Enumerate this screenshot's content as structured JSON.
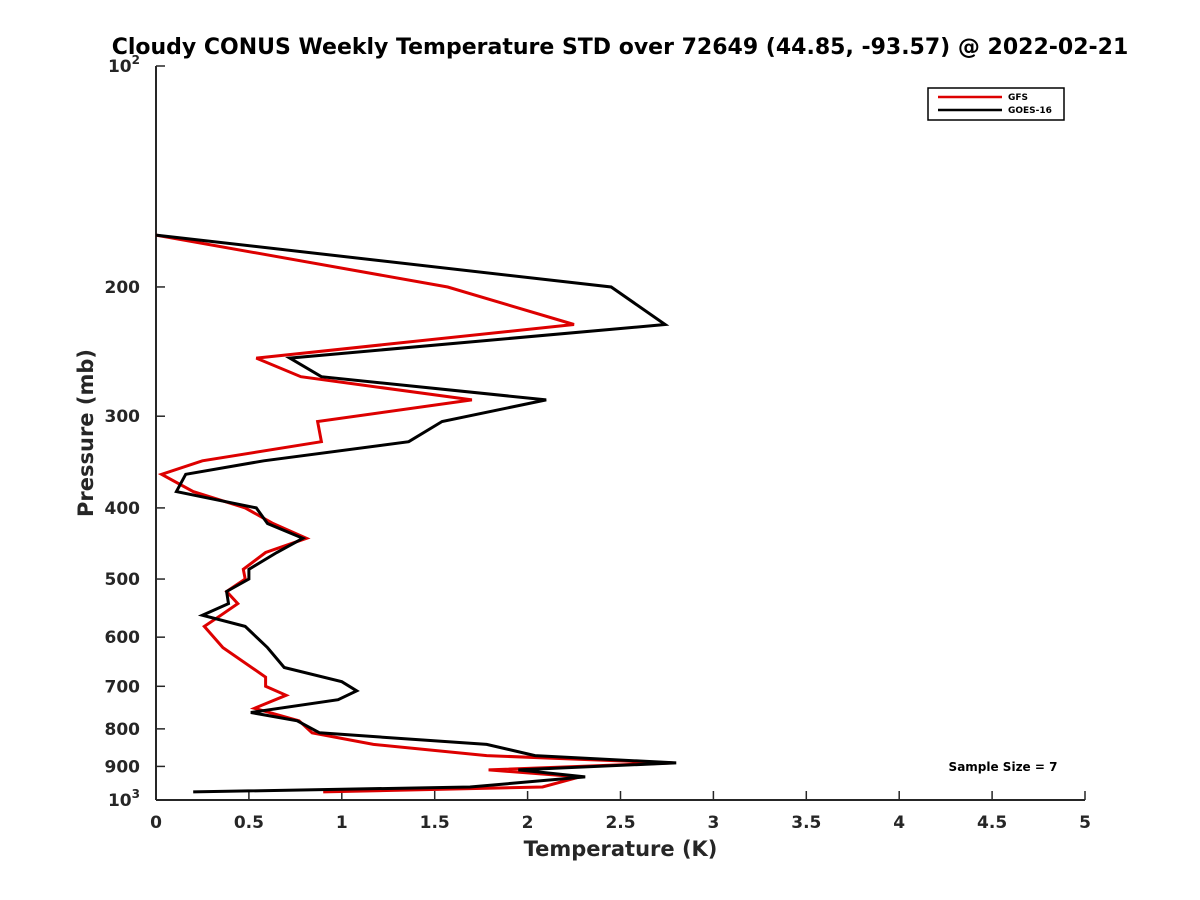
{
  "chart_data": {
    "type": "line",
    "title": "Cloudy CONUS Weekly Temperature STD over 72649 (44.85, -93.57) @ 2022-02-21",
    "xlabel": "Temperature (K)",
    "ylabel": "Pressure (mb)",
    "xlim": [
      0,
      5
    ],
    "ylim": [
      100,
      1000
    ],
    "y_scale": "log",
    "y_reversed": true,
    "x_ticks": [
      "0",
      "0.5",
      "1",
      "1.5",
      "2",
      "2.5",
      "3",
      "3.5",
      "4",
      "4.5",
      "5"
    ],
    "y_ticks": [
      {
        "value": 100,
        "base": "10",
        "exp": "2"
      },
      {
        "value": 200,
        "label": "200"
      },
      {
        "value": 300,
        "label": "300"
      },
      {
        "value": 400,
        "label": "400"
      },
      {
        "value": 500,
        "label": "500"
      },
      {
        "value": 600,
        "label": "600"
      },
      {
        "value": 700,
        "label": "700"
      },
      {
        "value": 800,
        "label": "800"
      },
      {
        "value": 900,
        "label": "900"
      },
      {
        "value": 1000,
        "base": "10",
        "exp": "3"
      }
    ],
    "legend_position": "top-right",
    "grid": false,
    "annotation": "Sample Size = 7",
    "series": [
      {
        "name": "GFS",
        "color": "#dd0000",
        "points": [
          [
            0.0,
            170
          ],
          [
            1.57,
            200
          ],
          [
            2.25,
            225
          ],
          [
            0.54,
            250
          ],
          [
            0.78,
            265
          ],
          [
            1.7,
            285
          ],
          [
            0.87,
            305
          ],
          [
            0.89,
            325
          ],
          [
            0.25,
            345
          ],
          [
            0.03,
            360
          ],
          [
            0.2,
            380
          ],
          [
            0.48,
            400
          ],
          [
            0.63,
            420
          ],
          [
            0.81,
            440
          ],
          [
            0.59,
            460
          ],
          [
            0.47,
            485
          ],
          [
            0.48,
            500
          ],
          [
            0.38,
            520
          ],
          [
            0.44,
            540
          ],
          [
            0.35,
            560
          ],
          [
            0.26,
            580
          ],
          [
            0.36,
            620
          ],
          [
            0.59,
            680
          ],
          [
            0.59,
            700
          ],
          [
            0.7,
            720
          ],
          [
            0.53,
            750
          ],
          [
            0.77,
            780
          ],
          [
            0.84,
            810
          ],
          [
            1.17,
            840
          ],
          [
            1.78,
            870
          ],
          [
            2.78,
            890
          ],
          [
            1.79,
            910
          ],
          [
            2.28,
            930
          ],
          [
            2.08,
            960
          ],
          [
            0.9,
            975
          ]
        ]
      },
      {
        "name": "GOES-16",
        "color": "#000000",
        "points": [
          [
            0.0,
            170
          ],
          [
            2.45,
            200
          ],
          [
            2.74,
            225
          ],
          [
            0.72,
            250
          ],
          [
            0.89,
            265
          ],
          [
            2.1,
            285
          ],
          [
            1.54,
            305
          ],
          [
            1.36,
            325
          ],
          [
            0.58,
            345
          ],
          [
            0.16,
            360
          ],
          [
            0.11,
            380
          ],
          [
            0.54,
            400
          ],
          [
            0.6,
            420
          ],
          [
            0.79,
            440
          ],
          [
            0.65,
            460
          ],
          [
            0.5,
            485
          ],
          [
            0.5,
            500
          ],
          [
            0.38,
            520
          ],
          [
            0.39,
            540
          ],
          [
            0.25,
            560
          ],
          [
            0.48,
            580
          ],
          [
            0.6,
            620
          ],
          [
            0.69,
            660
          ],
          [
            1.0,
            690
          ],
          [
            1.08,
            710
          ],
          [
            0.98,
            730
          ],
          [
            0.51,
            760
          ],
          [
            0.76,
            780
          ],
          [
            0.88,
            810
          ],
          [
            1.78,
            840
          ],
          [
            2.04,
            870
          ],
          [
            2.8,
            890
          ],
          [
            1.95,
            910
          ],
          [
            2.31,
            930
          ],
          [
            1.69,
            960
          ],
          [
            0.2,
            975
          ]
        ]
      }
    ]
  }
}
